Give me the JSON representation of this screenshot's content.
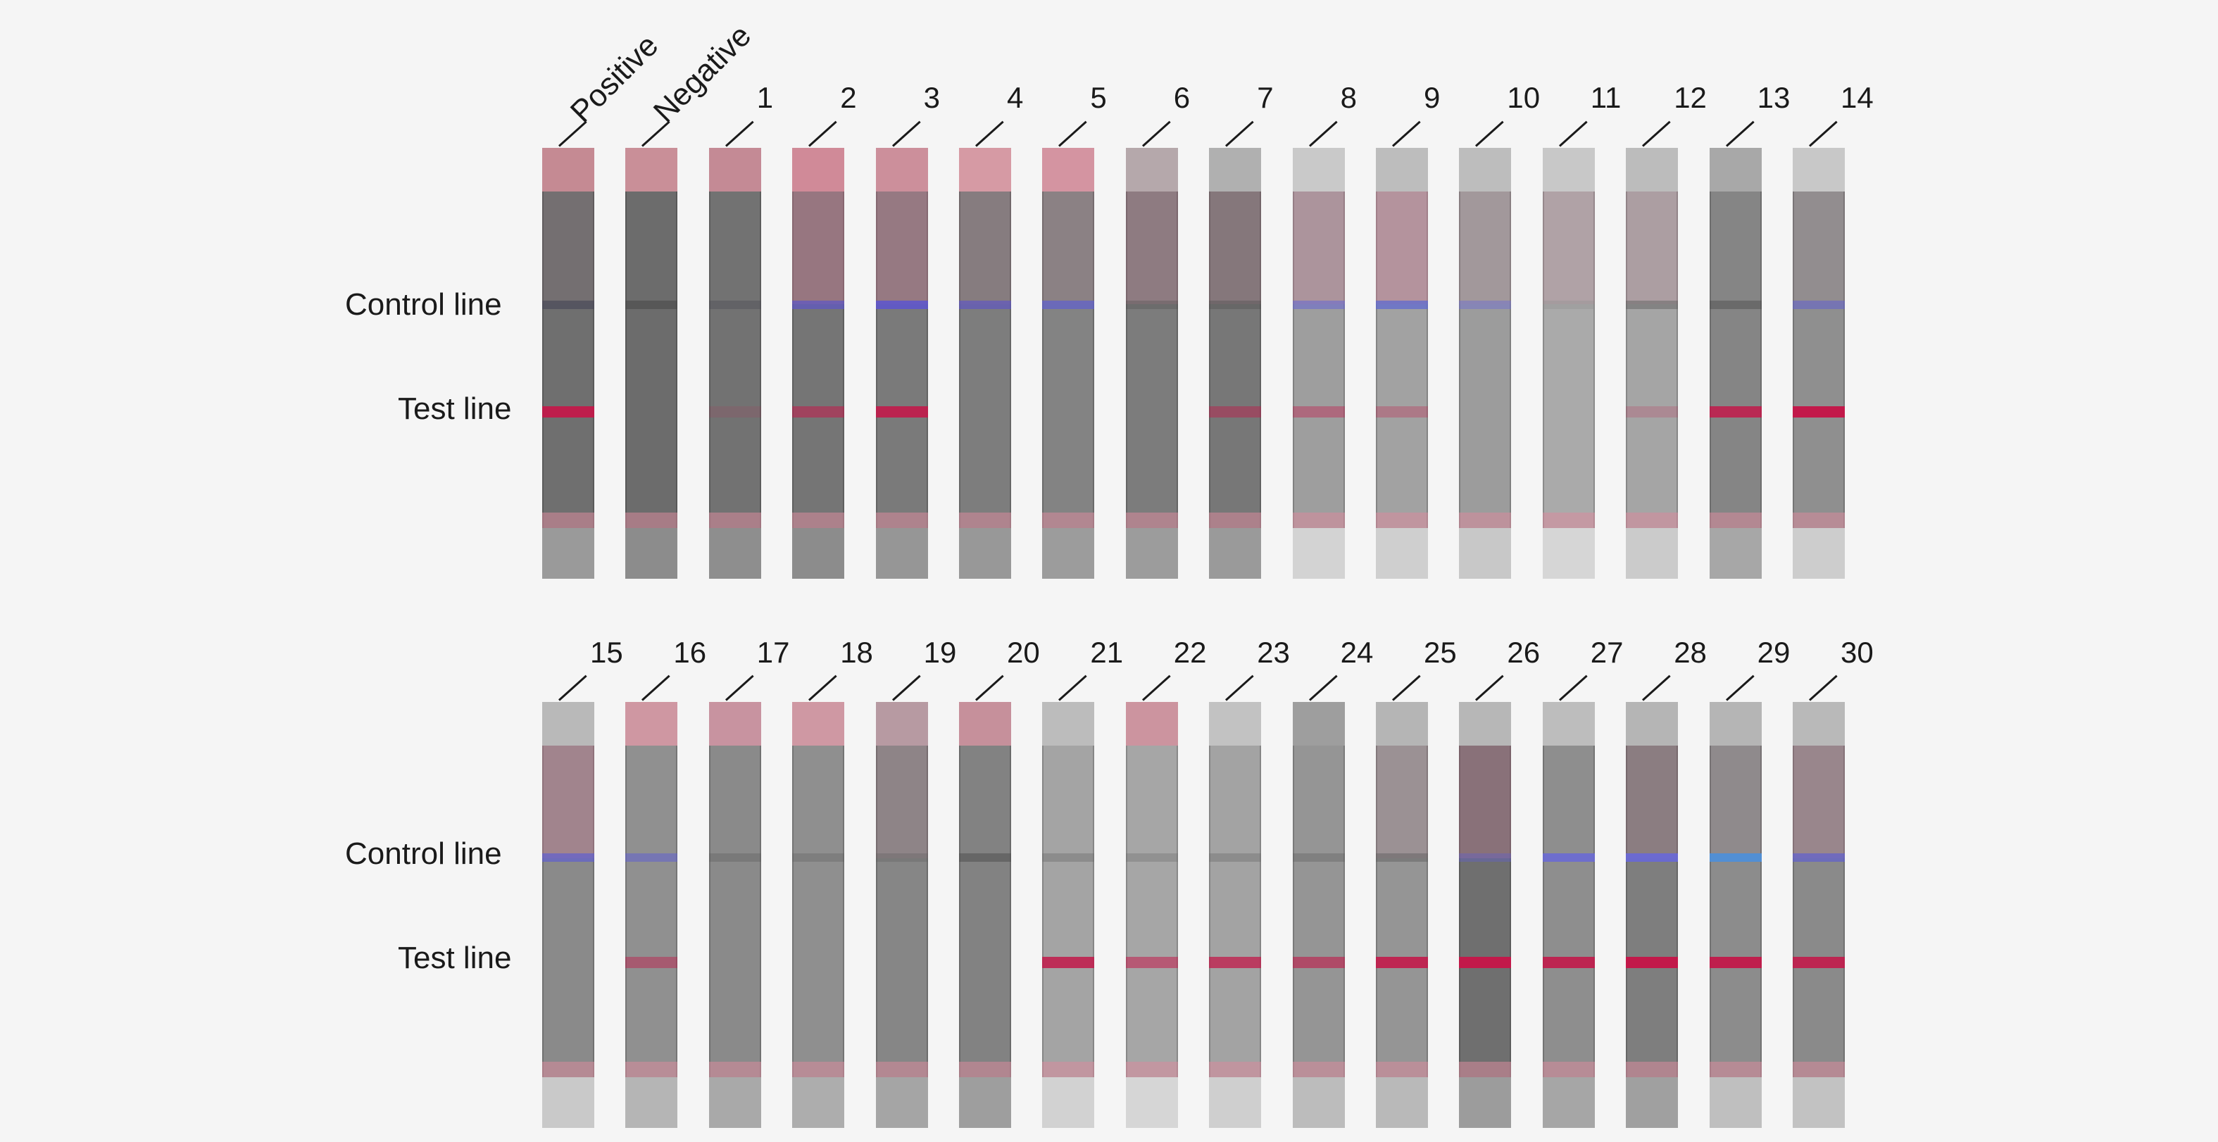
{
  "row_labels": {
    "control": "Control line",
    "test": "Test line"
  },
  "colors": {
    "background": "#f5f5f5",
    "control_band": "#6b6be0",
    "test_band": "#c2194a",
    "sample_pad": "#d98a9c"
  },
  "rows": [
    {
      "strips": [
        {
          "label": "Positive",
          "body": "#6f6f6f",
          "top": "#c58a93",
          "pad": "#9a9a9a",
          "control": "#4a4a5a",
          "control_op": 0.7,
          "test_op": 0.95,
          "wash": 0.05
        },
        {
          "label": "Negative",
          "body": "#6c6c6c",
          "top": "#c98f98",
          "pad": "#8c8c8c",
          "control": "#4a4a4a",
          "control_op": 0.6,
          "test_op": 0.0,
          "wash": 0.0
        },
        {
          "label": "1",
          "body": "#727272",
          "top": "#c48a95",
          "pad": "#8e8e8e",
          "control": "#4a4a55",
          "control_op": 0.4,
          "test_op": 0.12,
          "wash": 0.0
        },
        {
          "label": "2",
          "body": "#757575",
          "top": "#d08a98",
          "pad": "#8c8c8c",
          "control": "#5d55c8",
          "control_op": 0.7,
          "test_op": 0.55,
          "wash": 0.35
        },
        {
          "label": "3",
          "body": "#7a7a7a",
          "top": "#cc8f9b",
          "pad": "#969696",
          "control": "#5d55d0",
          "control_op": 0.85,
          "test_op": 0.9,
          "wash": 0.3
        },
        {
          "label": "4",
          "body": "#7d7d7d",
          "top": "#d69aa4",
          "pad": "#989898",
          "control": "#5d55c8",
          "control_op": 0.65,
          "test_op": 0.0,
          "wash": 0.1
        },
        {
          "label": "5",
          "body": "#838383",
          "top": "#d494a1",
          "pad": "#9c9c9c",
          "control": "#6060d0",
          "control_op": 0.7,
          "test_op": 0.0,
          "wash": 0.1
        },
        {
          "label": "6",
          "body": "#7c7c7c",
          "top": "#b5a8ab",
          "pad": "#9c9c9c",
          "control": "#4a4a4a",
          "control_op": 0.3,
          "test_op": 0.0,
          "wash": 0.2
        },
        {
          "label": "7",
          "body": "#777777",
          "top": "#b0b0b0",
          "pad": "#9a9a9a",
          "control": "#4a4a4a",
          "control_op": 0.35,
          "test_op": 0.45,
          "wash": 0.15
        },
        {
          "label": "8",
          "body": "#9e9e9e",
          "top": "#c9c9c9",
          "pad": "#d3d3d3",
          "control": "#6a6ad0",
          "control_op": 0.6,
          "test_op": 0.4,
          "wash": 0.25
        },
        {
          "label": "9",
          "body": "#a2a2a2",
          "top": "#bdbdbd",
          "pad": "#cfcfcf",
          "control": "#5f6ad0",
          "control_op": 0.75,
          "test_op": 0.3,
          "wash": 0.35
        },
        {
          "label": "10",
          "body": "#9c9c9c",
          "top": "#bdbdbd",
          "pad": "#c8c8c8",
          "control": "#7070d0",
          "control_op": 0.5,
          "test_op": 0.0,
          "wash": 0.1
        },
        {
          "label": "11",
          "body": "#aaaaaa",
          "top": "#c8c8c8",
          "pad": "#d6d6d6",
          "control": "#8a8a8a",
          "control_op": 0.3,
          "test_op": 0.0,
          "wash": 0.15
        },
        {
          "label": "12",
          "body": "#a5a5a5",
          "top": "#bcbcbc",
          "pad": "#cbcbcb",
          "control": "#5a5a5a",
          "control_op": 0.45,
          "test_op": 0.2,
          "wash": 0.15
        },
        {
          "label": "13",
          "body": "#858585",
          "top": "#a8a8a8",
          "pad": "#a7a7a7",
          "control": "#4a4a4a",
          "control_op": 0.45,
          "test_op": 0.85,
          "wash": 0.0
        },
        {
          "label": "14",
          "body": "#8f8f8f",
          "top": "#c8c8c8",
          "pad": "#cdcdcd",
          "control": "#6060d0",
          "control_op": 0.55,
          "test_op": 1.0,
          "wash": 0.05
        }
      ]
    },
    {
      "strips": [
        {
          "label": "15",
          "body": "#8a8a8a",
          "top": "#b9b9b9",
          "pad": "#c9c9c9",
          "control": "#6060d0",
          "control_op": 0.7,
          "test_op": 0.0,
          "wash": 0.3
        },
        {
          "label": "16",
          "body": "#909090",
          "top": "#cf97a2",
          "pad": "#b5b5b5",
          "control": "#6060d0",
          "control_op": 0.55,
          "test_op": 0.45,
          "wash": 0.0
        },
        {
          "label": "17",
          "body": "#8a8a8a",
          "top": "#c893a0",
          "pad": "#a9a9a9",
          "control": "#5a5a5a",
          "control_op": 0.35,
          "test_op": 0.0,
          "wash": 0.0
        },
        {
          "label": "18",
          "body": "#8f8f8f",
          "top": "#cf98a3",
          "pad": "#adadad",
          "control": "#5a5a5a",
          "control_op": 0.3,
          "test_op": 0.0,
          "wash": 0.0
        },
        {
          "label": "19",
          "body": "#868686",
          "top": "#b79aa2",
          "pad": "#a5a5a5",
          "control": "#5a5a5a",
          "control_op": 0.3,
          "test_op": 0.0,
          "wash": 0.1
        },
        {
          "label": "20",
          "body": "#828282",
          "top": "#c6909b",
          "pad": "#9e9e9e",
          "control": "#4a4a4a",
          "control_op": 0.5,
          "test_op": 0.0,
          "wash": 0.0
        },
        {
          "label": "21",
          "body": "#a4a4a4",
          "top": "#bcbcbc",
          "pad": "#d2d2d2",
          "control": "#6a6a6a",
          "control_op": 0.4,
          "test_op": 0.85,
          "wash": 0.0
        },
        {
          "label": "22",
          "body": "#a6a6a6",
          "top": "#cc949f",
          "pad": "#d6d6d6",
          "control": "#6a6a6a",
          "control_op": 0.35,
          "test_op": 0.55,
          "wash": 0.0
        },
        {
          "label": "23",
          "body": "#a3a3a3",
          "top": "#c2c2c2",
          "pad": "#cfcfcf",
          "control": "#6a6a6a",
          "control_op": 0.4,
          "test_op": 0.75,
          "wash": 0.0
        },
        {
          "label": "24",
          "body": "#959595",
          "top": "#9e9e9e",
          "pad": "#bcbcbc",
          "control": "#5a5a5a",
          "control_op": 0.35,
          "test_op": 0.6,
          "wash": 0.0
        },
        {
          "label": "25",
          "body": "#959595",
          "top": "#b5b5b5",
          "pad": "#b9b9b9",
          "control": "#5a5a5a",
          "control_op": 0.45,
          "test_op": 0.9,
          "wash": 0.1
        },
        {
          "label": "26",
          "body": "#6f6f6f",
          "top": "#b7b7b7",
          "pad": "#9c9c9c",
          "control": "#6060d0",
          "control_op": 0.4,
          "test_op": 1.0,
          "wash": 0.25
        },
        {
          "label": "27",
          "body": "#8e8e8e",
          "top": "#bdbdbd",
          "pad": "#a6a6a6",
          "control": "#6868d8",
          "control_op": 0.85,
          "test_op": 0.9,
          "wash": 0.0
        },
        {
          "label": "28",
          "body": "#7e7e7e",
          "top": "#b5b5b5",
          "pad": "#a0a0a0",
          "control": "#6868d8",
          "control_op": 0.9,
          "test_op": 1.0,
          "wash": 0.15
        },
        {
          "label": "29",
          "body": "#8c8c8c",
          "top": "#b5b5b5",
          "pad": "#bfbfbf",
          "control": "#4f8fd8",
          "control_op": 0.95,
          "test_op": 0.95,
          "wash": 0.05
        },
        {
          "label": "30",
          "body": "#8a8a8a",
          "top": "#b9b9b9",
          "pad": "#c2c2c2",
          "control": "#6060d0",
          "control_op": 0.7,
          "test_op": 0.9,
          "wash": 0.2
        }
      ]
    }
  ]
}
